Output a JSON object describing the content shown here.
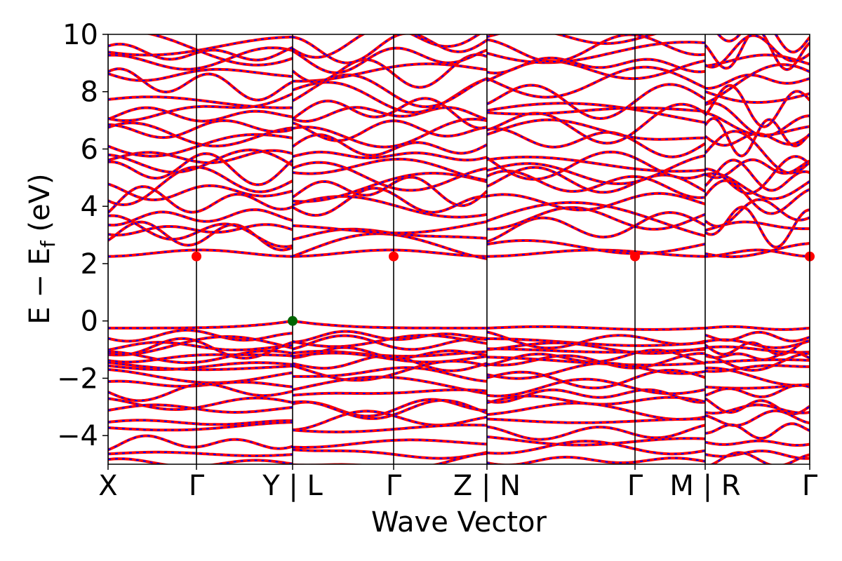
{
  "chart_data": {
    "type": "line",
    "title": "",
    "xlabel": "Wave Vector",
    "ylabel": "E − E",
    "ylabel_sub": "f",
    "ylabel_unit": " (eV)",
    "ylim": [
      -5,
      10
    ],
    "yticks": [
      10,
      8,
      6,
      4,
      2,
      0,
      -2,
      -4
    ],
    "ytick_labels": [
      "10",
      "8",
      "6",
      "4",
      "2",
      "0",
      "−2",
      "−4"
    ],
    "xlim": [
      0,
      100
    ],
    "kpoints": [
      {
        "label": "X",
        "x": 0
      },
      {
        "label": "Γ",
        "x": 12.6
      },
      {
        "label": "Y | L",
        "x": 26.3
      },
      {
        "label": "Γ",
        "x": 40.7
      },
      {
        "label": "Z | N",
        "x": 54.0
      },
      {
        "label": "Γ",
        "x": 75.1
      },
      {
        "label": "M | R",
        "x": 85.1
      },
      {
        "label": "Γ",
        "x": 100
      }
    ],
    "segments": [
      [
        0,
        26.3
      ],
      [
        26.3,
        54.0
      ],
      [
        54.0,
        85.1
      ],
      [
        85.1,
        100
      ]
    ],
    "series": [
      {
        "color": "#ff0000",
        "style": "solid"
      },
      {
        "color": "#0000ff",
        "style": "dashed"
      }
    ],
    "conduction_minimum": [
      {
        "x": 12.6,
        "y": 2.25
      },
      {
        "x": 40.7,
        "y": 2.25
      },
      {
        "x": 75.1,
        "y": 2.25
      },
      {
        "x": 100,
        "y": 2.25
      }
    ],
    "valence_maximum": [
      {
        "x": 26.3,
        "y": 0.0
      }
    ],
    "cbm_color": "#ff0000",
    "vbm_color": "#006400",
    "valence_band_levels": [
      -0.25,
      -0.55,
      -0.75,
      -0.9,
      -1.05,
      -1.2,
      -1.35,
      -1.5,
      -1.65,
      -1.9,
      -2.2,
      -2.5,
      -2.85,
      -3.15,
      -3.5,
      -3.8,
      -4.2,
      -4.55,
      -4.9
    ],
    "conduction_band_levels": [
      2.4,
      2.65,
      3.1,
      3.4,
      3.8,
      4.2,
      4.55,
      4.85,
      5.2,
      5.5,
      5.85,
      6.2,
      6.45,
      6.75,
      7.1,
      7.45,
      7.8,
      8.15,
      8.5,
      8.9,
      9.3,
      9.6,
      9.85
    ]
  }
}
